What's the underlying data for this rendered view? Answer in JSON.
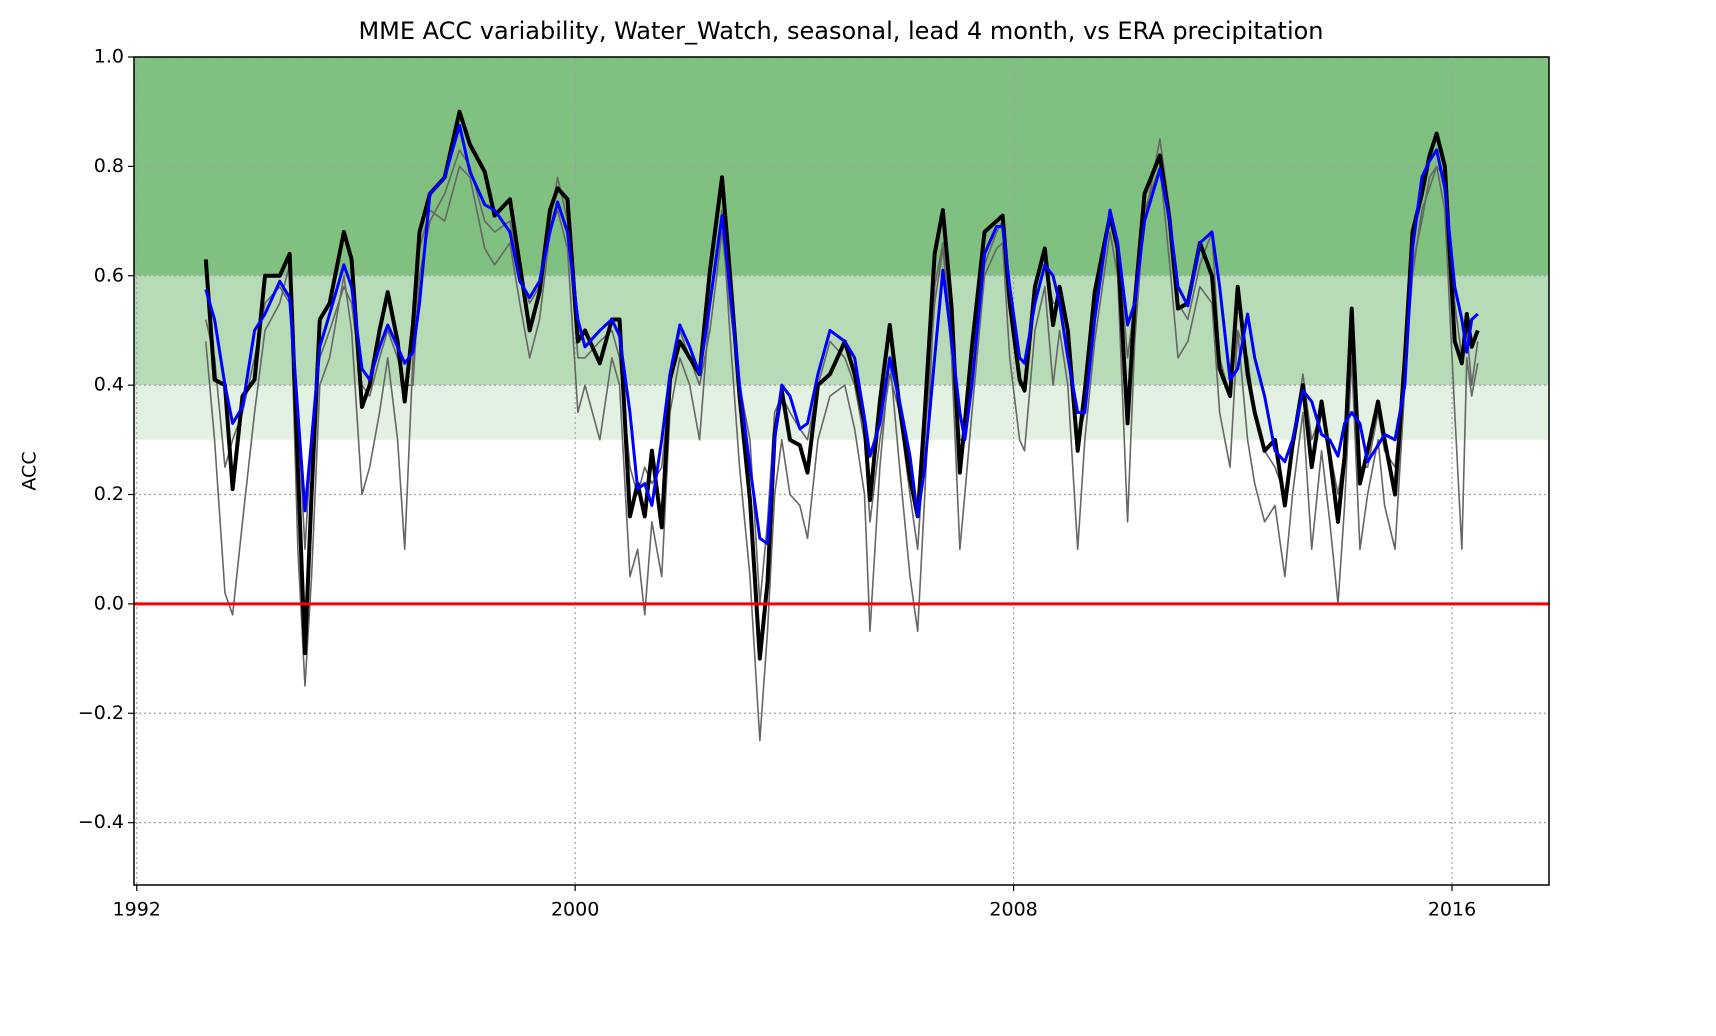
{
  "chart_data": {
    "type": "line",
    "title": "MME ACC variability, Water_Watch, seasonal, lead 4 month, vs ERA precipitation",
    "ylabel": "ACC",
    "xlim": [
      1991.95,
      2017.77
    ],
    "ylim": [
      -0.514,
      1.0
    ],
    "xticks": [
      1992,
      2000,
      2008,
      2016
    ],
    "yticks": [
      {
        "value": -0.4,
        "label": "−0.4"
      },
      {
        "value": -0.2,
        "label": "−0.2"
      },
      {
        "value": 0,
        "label": "0.0"
      },
      0.2,
      0.4,
      0.6,
      0.8,
      {
        "value": 1.0,
        "label": "1.0"
      }
    ],
    "grid": true,
    "bands": [
      {
        "from": 0.6,
        "to": 1.0,
        "color": "#80c080"
      },
      {
        "from": 0.4,
        "to": 0.6,
        "color": "#b7dbb7"
      },
      {
        "from": 0.3,
        "to": 0.4,
        "color": "#e3f1e3"
      }
    ],
    "hline": {
      "value": 0,
      "color": "#ff0000"
    },
    "x": [
      1993.26,
      1993.42,
      1993.61,
      1993.75,
      1993.93,
      1994.15,
      1994.34,
      1994.61,
      1994.79,
      1994.94,
      1995.07,
      1995.19,
      1995.34,
      1995.52,
      1995.78,
      1995.92,
      1996.11,
      1996.25,
      1996.43,
      1996.58,
      1996.76,
      1996.89,
      1997.04,
      1997.16,
      1997.35,
      1997.62,
      1997.89,
      1998.08,
      1998.35,
      1998.53,
      1998.81,
      1998.99,
      1999.17,
      1999.35,
      1999.54,
      1999.68,
      1999.86,
      2000.05,
      2000.18,
      2000.45,
      2000.67,
      2000.81,
      2001.0,
      2001.14,
      2001.27,
      2001.4,
      2001.58,
      2001.73,
      2001.91,
      2002.09,
      2002.27,
      2002.46,
      2002.68,
      2002.82,
      2003.0,
      2003.19,
      2003.37,
      2003.51,
      2003.64,
      2003.77,
      2003.92,
      2004.1,
      2004.24,
      2004.43,
      2004.65,
      2004.92,
      2005.1,
      2005.28,
      2005.38,
      2005.56,
      2005.74,
      2005.92,
      2006.11,
      2006.25,
      2006.38,
      2006.56,
      2006.71,
      2006.87,
      2007.02,
      2007.11,
      2007.24,
      2007.47,
      2007.69,
      2007.8,
      2007.93,
      2008.11,
      2008.2,
      2008.39,
      2008.57,
      2008.72,
      2008.84,
      2008.99,
      2009.17,
      2009.3,
      2009.48,
      2009.76,
      2009.9,
      2010.08,
      2010.21,
      2010.39,
      2010.67,
      2010.85,
      2011.0,
      2011.18,
      2011.4,
      2011.62,
      2011.76,
      2011.95,
      2012.09,
      2012.27,
      2012.4,
      2012.58,
      2012.77,
      2012.95,
      2013.09,
      2013.28,
      2013.44,
      2013.62,
      2013.77,
      2013.92,
      2014.04,
      2014.17,
      2014.32,
      2014.46,
      2014.65,
      2014.77,
      2014.96,
      2015.14,
      2015.28,
      2015.45,
      2015.59,
      2015.72,
      2015.87,
      2016.05,
      2016.18,
      2016.27,
      2016.36,
      2016.47
    ],
    "series": [
      {
        "color": "#666666",
        "width": 1.6,
        "values": [
          0.48,
          0.3,
          0.02,
          -0.02,
          0.15,
          0.35,
          0.5,
          0.55,
          0.62,
          0.1,
          -0.15,
          0.05,
          0.4,
          0.45,
          0.6,
          0.5,
          0.2,
          0.25,
          0.35,
          0.45,
          0.3,
          0.1,
          0.45,
          0.65,
          0.72,
          0.7,
          0.8,
          0.78,
          0.65,
          0.62,
          0.66,
          0.55,
          0.45,
          0.52,
          0.68,
          0.72,
          0.65,
          0.35,
          0.4,
          0.3,
          0.45,
          0.4,
          0.05,
          0.1,
          -0.02,
          0.15,
          0.05,
          0.35,
          0.45,
          0.4,
          0.3,
          0.55,
          0.72,
          0.5,
          0.25,
          0.05,
          -0.25,
          -0.05,
          0.2,
          0.3,
          0.2,
          0.18,
          0.12,
          0.3,
          0.38,
          0.4,
          0.32,
          0.2,
          -0.05,
          0.25,
          0.45,
          0.25,
          0.05,
          -0.05,
          0.2,
          0.58,
          0.66,
          0.45,
          0.1,
          0.2,
          0.35,
          0.6,
          0.65,
          0.66,
          0.45,
          0.3,
          0.28,
          0.5,
          0.58,
          0.4,
          0.5,
          0.4,
          0.1,
          0.3,
          0.48,
          0.68,
          0.6,
          0.15,
          0.48,
          0.72,
          0.8,
          0.62,
          0.45,
          0.48,
          0.58,
          0.55,
          0.35,
          0.25,
          0.5,
          0.3,
          0.22,
          0.15,
          0.18,
          0.05,
          0.2,
          0.35,
          0.1,
          0.28,
          0.15,
          0.0,
          0.18,
          0.45,
          0.1,
          0.2,
          0.3,
          0.18,
          0.1,
          0.4,
          0.62,
          0.7,
          0.78,
          0.8,
          0.72,
          0.35,
          0.1,
          0.45,
          0.38,
          0.44
        ]
      },
      {
        "color": "#666666",
        "width": 1.6,
        "values": [
          0.52,
          0.45,
          0.25,
          0.3,
          0.35,
          0.45,
          0.55,
          0.58,
          0.55,
          0.35,
          0.1,
          0.3,
          0.45,
          0.5,
          0.58,
          0.55,
          0.4,
          0.38,
          0.45,
          0.5,
          0.45,
          0.4,
          0.4,
          0.6,
          0.7,
          0.75,
          0.83,
          0.8,
          0.7,
          0.68,
          0.7,
          0.6,
          0.55,
          0.58,
          0.7,
          0.78,
          0.7,
          0.45,
          0.45,
          0.48,
          0.5,
          0.45,
          0.25,
          0.2,
          0.25,
          0.22,
          0.25,
          0.4,
          0.5,
          0.45,
          0.4,
          0.5,
          0.68,
          0.55,
          0.4,
          0.3,
          0.0,
          0.15,
          0.35,
          0.38,
          0.35,
          0.32,
          0.3,
          0.4,
          0.48,
          0.45,
          0.4,
          0.3,
          0.15,
          0.3,
          0.42,
          0.35,
          0.2,
          0.1,
          0.3,
          0.55,
          0.65,
          0.5,
          0.3,
          0.3,
          0.4,
          0.62,
          0.68,
          0.7,
          0.55,
          0.4,
          0.4,
          0.55,
          0.62,
          0.55,
          0.55,
          0.45,
          0.3,
          0.35,
          0.55,
          0.72,
          0.66,
          0.45,
          0.55,
          0.7,
          0.85,
          0.72,
          0.55,
          0.52,
          0.62,
          0.68,
          0.45,
          0.38,
          0.5,
          0.45,
          0.35,
          0.28,
          0.25,
          0.2,
          0.3,
          0.42,
          0.3,
          0.35,
          0.28,
          0.2,
          0.28,
          0.48,
          0.25,
          0.25,
          0.35,
          0.28,
          0.25,
          0.42,
          0.6,
          0.72,
          0.76,
          0.8,
          0.78,
          0.55,
          0.45,
          0.5,
          0.4,
          0.48
        ]
      },
      {
        "color": "#000000",
        "width": 4,
        "values": [
          0.63,
          0.41,
          0.4,
          0.21,
          0.38,
          0.41,
          0.6,
          0.6,
          0.64,
          0.25,
          -0.09,
          0.2,
          0.52,
          0.55,
          0.68,
          0.63,
          0.36,
          0.4,
          0.5,
          0.57,
          0.48,
          0.37,
          0.51,
          0.68,
          0.75,
          0.78,
          0.9,
          0.84,
          0.79,
          0.71,
          0.74,
          0.62,
          0.5,
          0.57,
          0.72,
          0.76,
          0.74,
          0.48,
          0.5,
          0.44,
          0.52,
          0.52,
          0.16,
          0.22,
          0.16,
          0.28,
          0.14,
          0.41,
          0.48,
          0.45,
          0.42,
          0.61,
          0.78,
          0.61,
          0.38,
          0.19,
          -0.1,
          0.04,
          0.31,
          0.39,
          0.3,
          0.29,
          0.24,
          0.4,
          0.42,
          0.48,
          0.42,
          0.33,
          0.19,
          0.37,
          0.51,
          0.36,
          0.23,
          0.16,
          0.35,
          0.64,
          0.72,
          0.54,
          0.24,
          0.33,
          0.47,
          0.68,
          0.7,
          0.71,
          0.55,
          0.41,
          0.39,
          0.58,
          0.65,
          0.51,
          0.58,
          0.5,
          0.28,
          0.39,
          0.57,
          0.71,
          0.65,
          0.33,
          0.55,
          0.75,
          0.82,
          0.7,
          0.54,
          0.55,
          0.66,
          0.6,
          0.43,
          0.38,
          0.58,
          0.42,
          0.35,
          0.28,
          0.3,
          0.18,
          0.29,
          0.4,
          0.25,
          0.37,
          0.27,
          0.15,
          0.27,
          0.54,
          0.22,
          0.28,
          0.37,
          0.3,
          0.2,
          0.45,
          0.68,
          0.75,
          0.82,
          0.86,
          0.8,
          0.48,
          0.44,
          0.53,
          0.47,
          0.5
        ]
      },
      {
        "color": "#0000ff",
        "width": 3,
        "values": [
          0.575,
          0.52,
          0.4,
          0.33,
          0.36,
          0.5,
          0.53,
          0.59,
          0.56,
          0.35,
          0.17,
          0.3,
          0.47,
          0.53,
          0.62,
          0.58,
          0.43,
          0.41,
          0.47,
          0.51,
          0.47,
          0.44,
          0.46,
          0.55,
          0.75,
          0.78,
          0.875,
          0.79,
          0.73,
          0.72,
          0.68,
          0.59,
          0.56,
          0.59,
          0.68,
          0.735,
          0.68,
          0.52,
          0.47,
          0.5,
          0.52,
          0.49,
          0.35,
          0.21,
          0.22,
          0.18,
          0.3,
          0.42,
          0.51,
          0.47,
          0.42,
          0.55,
          0.71,
          0.58,
          0.4,
          0.25,
          0.12,
          0.11,
          0.3,
          0.4,
          0.38,
          0.32,
          0.33,
          0.42,
          0.5,
          0.48,
          0.45,
          0.34,
          0.27,
          0.33,
          0.45,
          0.37,
          0.27,
          0.16,
          0.25,
          0.45,
          0.61,
          0.48,
          0.35,
          0.3,
          0.4,
          0.64,
          0.69,
          0.69,
          0.58,
          0.45,
          0.44,
          0.55,
          0.62,
          0.6,
          0.55,
          0.45,
          0.35,
          0.35,
          0.52,
          0.72,
          0.66,
          0.51,
          0.55,
          0.7,
          0.795,
          0.7,
          0.58,
          0.545,
          0.66,
          0.68,
          0.58,
          0.41,
          0.43,
          0.53,
          0.45,
          0.38,
          0.28,
          0.26,
          0.3,
          0.39,
          0.37,
          0.31,
          0.3,
          0.27,
          0.33,
          0.35,
          0.33,
          0.26,
          0.29,
          0.31,
          0.3,
          0.4,
          0.65,
          0.78,
          0.81,
          0.83,
          0.76,
          0.58,
          0.52,
          0.46,
          0.52,
          0.53
        ]
      }
    ]
  }
}
